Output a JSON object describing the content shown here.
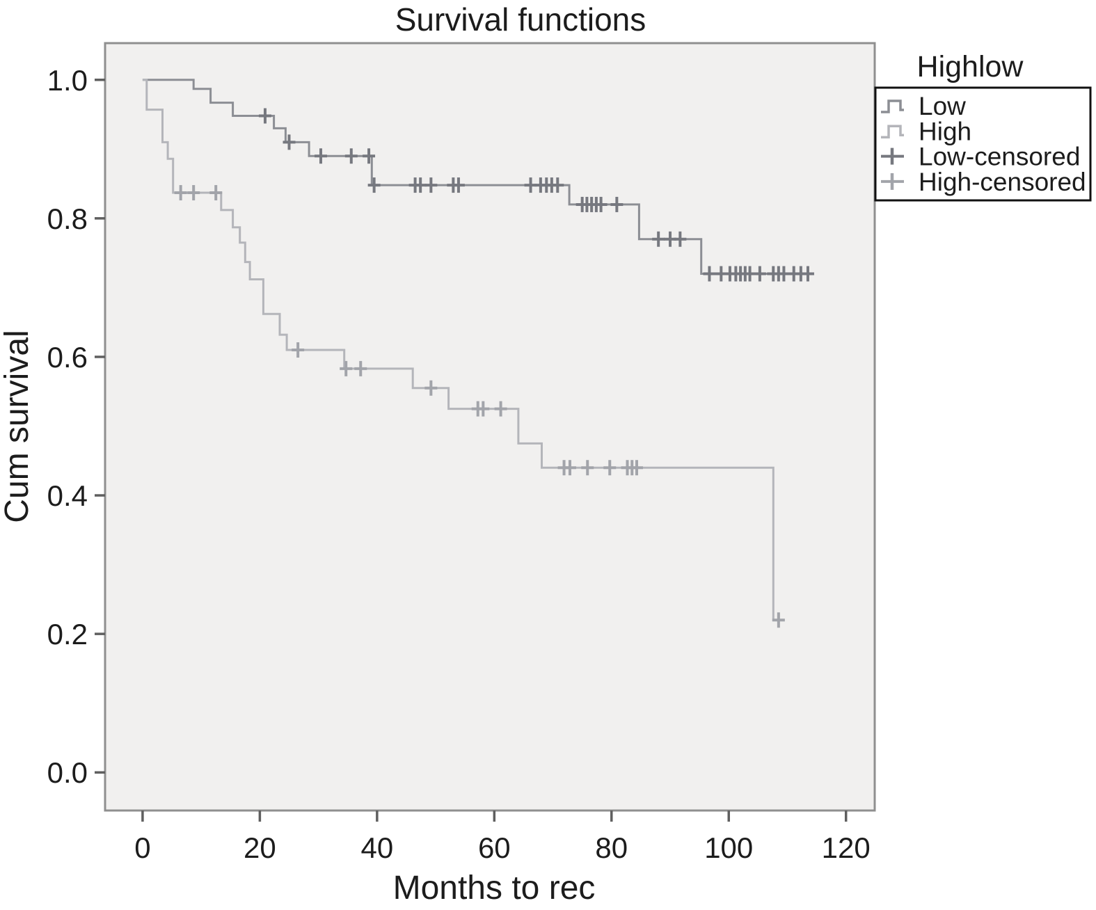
{
  "title": "Survival functions",
  "axes": {
    "x_label": "Months to rec",
    "y_label": "Cum survival"
  },
  "legend": {
    "title": "Highlow",
    "entries": [
      {
        "label": "Low",
        "type": "step",
        "color": "#8c8e94"
      },
      {
        "label": "High",
        "type": "step",
        "color": "#b4b5ba"
      },
      {
        "label": "Low-censored",
        "type": "censor",
        "color": "#76787f"
      },
      {
        "label": "High-censored",
        "type": "censor",
        "color": "#a2a4aa"
      }
    ]
  },
  "chart_data": {
    "type": "line",
    "variant": "kaplan_meier_step",
    "title": "Survival functions",
    "xlabel": "Months to rec",
    "ylabel": "Cum survival",
    "xticks": [
      0,
      20,
      40,
      60,
      80,
      100,
      120
    ],
    "yticks": [
      0.0,
      0.2,
      0.4,
      0.6,
      0.8,
      1.0
    ],
    "xlim": [
      -6.4,
      124.9
    ],
    "ylim": [
      -0.055,
      1.053
    ],
    "grid": false,
    "plot_bg": "#f1f0ef",
    "frame_color": "#8f8f8f",
    "legend_position": "outside-top-right",
    "series": [
      {
        "name": "Low",
        "color": "#8c8e94",
        "censor_color": "#76787f",
        "end_x": 114.5,
        "steps": [
          [
            0,
            1.0
          ],
          [
            8.7,
            0.987
          ],
          [
            11.6,
            0.967
          ],
          [
            15.4,
            0.948
          ],
          [
            22.4,
            0.93
          ],
          [
            24.4,
            0.91
          ],
          [
            28.4,
            0.89
          ],
          [
            39.1,
            0.848
          ],
          [
            72.8,
            0.82
          ],
          [
            84.7,
            0.77
          ],
          [
            95.3,
            0.72
          ]
        ],
        "censored": [
          [
            20.9,
            0.948
          ],
          [
            25.0,
            0.91
          ],
          [
            30.4,
            0.89
          ],
          [
            35.6,
            0.89
          ],
          [
            38.6,
            0.89
          ],
          [
            39.5,
            0.848
          ],
          [
            46.5,
            0.848
          ],
          [
            47.4,
            0.848
          ],
          [
            49.2,
            0.848
          ],
          [
            53.0,
            0.848
          ],
          [
            53.9,
            0.848
          ],
          [
            66.2,
            0.848
          ],
          [
            67.9,
            0.848
          ],
          [
            68.9,
            0.848
          ],
          [
            69.8,
            0.848
          ],
          [
            70.8,
            0.848
          ],
          [
            75.0,
            0.82
          ],
          [
            75.8,
            0.82
          ],
          [
            76.6,
            0.82
          ],
          [
            77.4,
            0.82
          ],
          [
            78.2,
            0.82
          ],
          [
            80.9,
            0.82
          ],
          [
            88.0,
            0.77
          ],
          [
            90.0,
            0.77
          ],
          [
            91.7,
            0.77
          ],
          [
            96.7,
            0.72
          ],
          [
            98.7,
            0.72
          ],
          [
            100.2,
            0.72
          ],
          [
            101.2,
            0.72
          ],
          [
            102.0,
            0.72
          ],
          [
            102.8,
            0.72
          ],
          [
            103.6,
            0.72
          ],
          [
            105.3,
            0.72
          ],
          [
            107.6,
            0.72
          ],
          [
            108.5,
            0.72
          ],
          [
            109.4,
            0.72
          ],
          [
            111.1,
            0.72
          ],
          [
            112.3,
            0.72
          ],
          [
            113.5,
            0.72
          ]
        ]
      },
      {
        "name": "High",
        "color": "#b4b5ba",
        "censor_color": "#a2a4aa",
        "end_x": 108.7,
        "steps": [
          [
            0,
            1.0
          ],
          [
            0.7,
            0.957
          ],
          [
            3.4,
            0.91
          ],
          [
            4.3,
            0.886
          ],
          [
            5.2,
            0.837
          ],
          [
            13.4,
            0.812
          ],
          [
            15.4,
            0.787
          ],
          [
            16.6,
            0.765
          ],
          [
            17.5,
            0.737
          ],
          [
            18.3,
            0.712
          ],
          [
            20.6,
            0.662
          ],
          [
            23.4,
            0.632
          ],
          [
            24.6,
            0.61
          ],
          [
            34.4,
            0.583
          ],
          [
            46.1,
            0.555
          ],
          [
            52.2,
            0.525
          ],
          [
            64.1,
            0.475
          ],
          [
            68.1,
            0.44
          ],
          [
            107.6,
            0.22
          ]
        ],
        "censored": [
          [
            6.5,
            0.837
          ],
          [
            8.7,
            0.837
          ],
          [
            12.5,
            0.837
          ],
          [
            26.5,
            0.61
          ],
          [
            34.7,
            0.583
          ],
          [
            37.2,
            0.583
          ],
          [
            49.2,
            0.555
          ],
          [
            57.2,
            0.525
          ],
          [
            58.1,
            0.525
          ],
          [
            61.1,
            0.525
          ],
          [
            71.9,
            0.44
          ],
          [
            72.9,
            0.44
          ],
          [
            75.9,
            0.44
          ],
          [
            79.7,
            0.44
          ],
          [
            82.7,
            0.44
          ],
          [
            83.5,
            0.44
          ],
          [
            84.3,
            0.44
          ],
          [
            108.5,
            0.22
          ]
        ]
      }
    ]
  }
}
